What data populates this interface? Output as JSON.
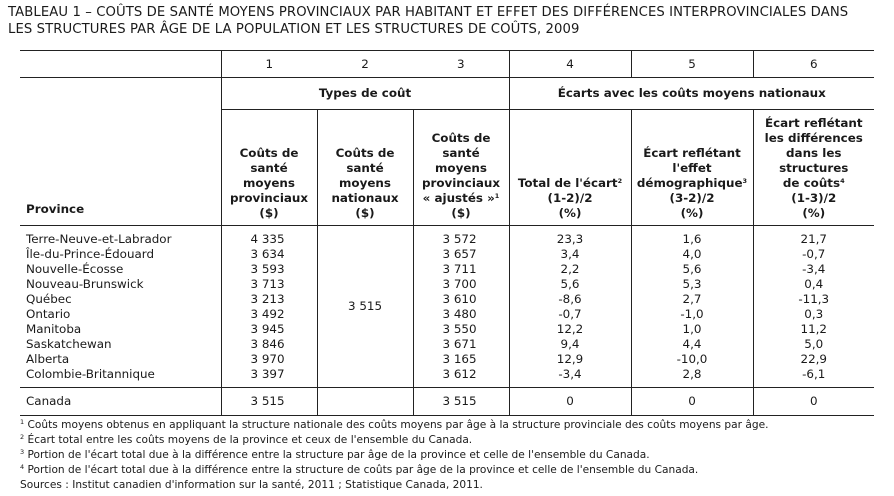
{
  "title": {
    "line1": "TABLEAU 1 – COÛTS DE SANTÉ MOYENS PROVINCIAUX PAR HABITANT ET EFFET DES DIFFÉRENCES INTERPROVINCIALES DANS",
    "line2": "LES STRUCTURES PAR ÂGE DE LA POPULATION ET LES STRUCTURES DE COÛTS, 2009"
  },
  "col_numbers": [
    "1",
    "2",
    "3",
    "4",
    "5",
    "6"
  ],
  "groups": {
    "types": "Types de coût",
    "ecarts": "Écarts avec les coûts moyens nationaux"
  },
  "headers": {
    "province": "Province",
    "c1": [
      "Coûts de",
      "santé",
      "moyens",
      "provinciaux",
      "($)"
    ],
    "c2": [
      "Coûts de",
      "santé",
      "moyens",
      "nationaux",
      "($)"
    ],
    "c3": [
      "Coûts de",
      "santé",
      "moyens",
      "provinciaux",
      "« ajustés »"
    ],
    "c3_sup": "1",
    "c3_last": "($)",
    "c4": [
      "Total de l'écart",
      "(1-2)/2",
      "(%)"
    ],
    "c4_sup": "2",
    "c5": [
      "Écart reflétant",
      "l'effet",
      "démographique",
      "(3-2)/2",
      "(%)"
    ],
    "c5_sup": "3",
    "c6": [
      "Écart reflétant",
      "les différences",
      "dans les structures",
      "de coûts",
      "(1-3)/2",
      "(%)"
    ],
    "c6_sup": "4"
  },
  "provinces": [
    "Terre-Neuve-et-Labrador",
    "Île-du-Prince-Édouard",
    "Nouvelle-Écosse",
    "Nouveau-Brunswick",
    "Québec",
    "Ontario",
    "Manitoba",
    "Saskatchewan",
    "Alberta",
    "Colombie-Britannique"
  ],
  "col1": [
    "4 335",
    "3 634",
    "3 593",
    "3 713",
    "3 213",
    "3 492",
    "3 945",
    "3 846",
    "3 970",
    "3 397"
  ],
  "col2_merged": "3 515",
  "col3": [
    "3 572",
    "3 657",
    "3 711",
    "3 700",
    "3 610",
    "3 480",
    "3 550",
    "3 671",
    "3 165",
    "3 612"
  ],
  "col4": [
    "23,3",
    "3,4",
    "2,2",
    "5,6",
    "-8,6",
    "-0,7",
    "12,2",
    "9,4",
    "12,9",
    "-3,4"
  ],
  "col5": [
    "1,6",
    "4,0",
    "5,6",
    "5,3",
    "2,7",
    "-1,0",
    "1,0",
    "4,4",
    "-10,0",
    "2,8"
  ],
  "col6": [
    "21,7",
    "-0,7",
    "-3,4",
    "0,4",
    "-11,3",
    "0,3",
    "11,2",
    "5,0",
    "22,9",
    "-6,1"
  ],
  "canada": {
    "label": "Canada",
    "c1": "3 515",
    "c3": "3 515",
    "c4": "0",
    "c5": "0",
    "c6": "0"
  },
  "footnotes": [
    {
      "sup": "1",
      "text": " Coûts moyens obtenus en appliquant la structure nationale des coûts moyens par âge à la structure provinciale des coûts moyens par âge."
    },
    {
      "sup": "2",
      "text": " Écart total entre les coûts moyens de la province et ceux de l'ensemble du Canada."
    },
    {
      "sup": "3",
      "text": " Portion de l'écart total due à la différence entre la structure par âge de la province et celle de l'ensemble du Canada."
    },
    {
      "sup": "4",
      "text": " Portion de l'écart total due à la différence entre la structure de coûts par âge de la province et celle de l'ensemble du Canada."
    }
  ],
  "source": "Sources : Institut canadien d'information sur la santé, 2011 ; Statistique Canada, 2011."
}
